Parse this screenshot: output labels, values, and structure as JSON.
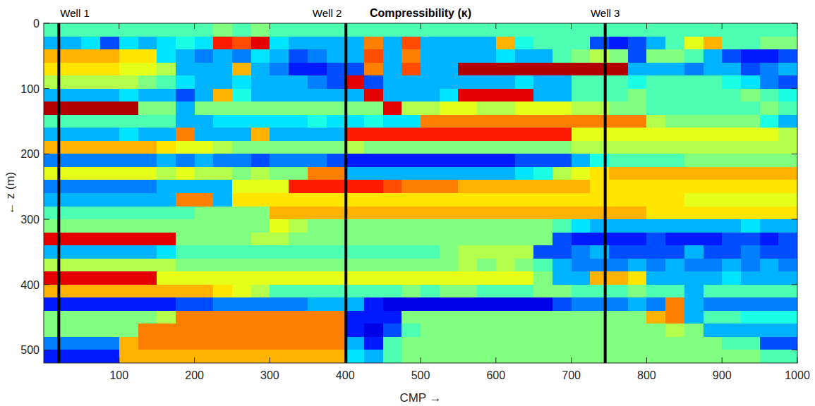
{
  "chart_data": {
    "type": "heatmap",
    "title": "Compressibility (κ)",
    "x_label": "CMP →",
    "y_label": "← z (m)",
    "xlim": [
      0,
      1000
    ],
    "ylim": [
      0,
      520
    ],
    "xticks": [
      100,
      200,
      300,
      400,
      500,
      600,
      700,
      800,
      900,
      1000
    ],
    "yticks": [
      0,
      100,
      200,
      300,
      400,
      500
    ],
    "color": "jet",
    "color_range": [
      0,
      1
    ],
    "wells": [
      {
        "label": "Well 1",
        "x": 20
      },
      {
        "label": "Well 2",
        "x": 401
      },
      {
        "label": "Well 3",
        "x": 745
      }
    ],
    "x_bins": [
      0,
      25,
      50,
      75,
      100,
      125,
      150,
      175,
      200,
      225,
      250,
      275,
      300,
      325,
      350,
      375,
      400,
      425,
      450,
      475,
      500,
      525,
      550,
      575,
      600,
      625,
      650,
      675,
      700,
      725,
      750,
      775,
      800,
      825,
      850,
      875,
      900,
      925,
      950,
      975,
      1000
    ],
    "y_bins": [
      0,
      20,
      40,
      60,
      80,
      100,
      120,
      140,
      160,
      180,
      200,
      220,
      240,
      260,
      280,
      300,
      320,
      340,
      360,
      380,
      400,
      420,
      440,
      460,
      480,
      500,
      520
    ],
    "cells": [
      [
        0.45,
        0.45,
        0.45,
        0.45,
        0.45,
        0.45,
        0.45,
        0.45,
        0.45,
        0.5,
        0.45,
        0.5,
        0.45,
        0.45,
        0.45,
        0.45,
        0.45,
        0.45,
        0.45,
        0.45,
        0.45,
        0.45,
        0.45,
        0.45,
        0.45,
        0.45,
        0.45,
        0.45,
        0.45,
        0.45,
        0.45,
        0.45,
        0.45,
        0.45,
        0.45,
        0.45,
        0.45,
        0.45,
        0.45,
        0.45
      ],
      [
        0.3,
        0.3,
        0.35,
        0.2,
        0.35,
        0.3,
        0.35,
        0.4,
        0.35,
        0.85,
        0.8,
        0.9,
        0.35,
        0.3,
        0.3,
        0.3,
        0.3,
        0.75,
        0.3,
        0.8,
        0.3,
        0.3,
        0.3,
        0.3,
        0.7,
        0.4,
        0.45,
        0.45,
        0.45,
        0.2,
        0.15,
        0.2,
        0.3,
        0.45,
        0.6,
        0.7,
        0.45,
        0.45,
        0.5,
        0.5
      ],
      [
        0.7,
        0.7,
        0.7,
        0.7,
        0.65,
        0.65,
        0.35,
        0.3,
        0.25,
        0.3,
        0.25,
        0.35,
        0.3,
        0.2,
        0.25,
        0.3,
        0.3,
        0.8,
        0.3,
        0.75,
        0.3,
        0.3,
        0.3,
        0.3,
        0.35,
        0.3,
        0.3,
        0.45,
        0.5,
        0.55,
        0.5,
        0.2,
        0.5,
        0.5,
        0.45,
        0.3,
        0.2,
        0.15,
        0.15,
        0.2
      ],
      [
        0.65,
        0.65,
        0.65,
        0.65,
        0.6,
        0.6,
        0.55,
        0.3,
        0.3,
        0.3,
        0.7,
        0.3,
        0.25,
        0.15,
        0.15,
        0.2,
        0.2,
        0.75,
        0.3,
        0.8,
        0.3,
        0.3,
        0.95,
        0.95,
        0.95,
        0.95,
        0.95,
        0.95,
        0.95,
        0.95,
        0.95,
        0.3,
        0.3,
        0.3,
        0.25,
        0.3,
        0.3,
        0.2,
        0.25,
        0.3
      ],
      [
        0.55,
        0.55,
        0.55,
        0.55,
        0.55,
        0.5,
        0.45,
        0.35,
        0.3,
        0.3,
        0.35,
        0.3,
        0.3,
        0.3,
        0.25,
        0.2,
        0.9,
        0.2,
        0.3,
        0.3,
        0.3,
        0.3,
        0.3,
        0.3,
        0.3,
        0.35,
        0.3,
        0.3,
        0.45,
        0.45,
        0.45,
        0.4,
        0.45,
        0.45,
        0.45,
        0.45,
        0.4,
        0.35,
        0.25,
        0.2
      ],
      [
        0.3,
        0.3,
        0.3,
        0.3,
        0.35,
        0.3,
        0.3,
        0.2,
        0.3,
        0.7,
        0.4,
        0.3,
        0.3,
        0.3,
        0.3,
        0.3,
        0.3,
        0.9,
        0.3,
        0.3,
        0.3,
        0.35,
        0.9,
        0.9,
        0.9,
        0.9,
        0.3,
        0.3,
        0.45,
        0.45,
        0.45,
        0.5,
        0.45,
        0.45,
        0.45,
        0.45,
        0.45,
        0.5,
        0.45,
        0.4
      ],
      [
        0.95,
        0.95,
        0.95,
        0.95,
        0.95,
        0.5,
        0.5,
        0.3,
        0.5,
        0.5,
        0.5,
        0.5,
        0.5,
        0.5,
        0.5,
        0.5,
        0.5,
        0.5,
        0.9,
        0.55,
        0.55,
        0.6,
        0.6,
        0.55,
        0.55,
        0.6,
        0.6,
        0.6,
        0.55,
        0.55,
        0.5,
        0.5,
        0.45,
        0.45,
        0.45,
        0.45,
        0.45,
        0.45,
        0.5,
        0.45
      ],
      [
        0.45,
        0.45,
        0.45,
        0.45,
        0.45,
        0.45,
        0.45,
        0.3,
        0.3,
        0.35,
        0.35,
        0.35,
        0.35,
        0.35,
        0.4,
        0.35,
        0.35,
        0.4,
        0.35,
        0.35,
        0.75,
        0.75,
        0.75,
        0.75,
        0.75,
        0.75,
        0.75,
        0.75,
        0.75,
        0.75,
        0.75,
        0.75,
        0.55,
        0.5,
        0.5,
        0.5,
        0.5,
        0.5,
        0.4,
        0.3
      ],
      [
        0.3,
        0.3,
        0.3,
        0.3,
        0.35,
        0.3,
        0.3,
        0.75,
        0.3,
        0.3,
        0.3,
        0.7,
        0.3,
        0.3,
        0.3,
        0.3,
        0.85,
        0.85,
        0.85,
        0.85,
        0.85,
        0.85,
        0.85,
        0.85,
        0.85,
        0.85,
        0.85,
        0.85,
        0.6,
        0.6,
        0.6,
        0.6,
        0.6,
        0.6,
        0.6,
        0.6,
        0.6,
        0.6,
        0.6,
        0.55
      ],
      [
        0.7,
        0.7,
        0.7,
        0.7,
        0.7,
        0.7,
        0.65,
        0.6,
        0.6,
        0.55,
        0.5,
        0.5,
        0.5,
        0.5,
        0.5,
        0.5,
        0.55,
        0.5,
        0.5,
        0.5,
        0.5,
        0.5,
        0.5,
        0.5,
        0.5,
        0.5,
        0.5,
        0.5,
        0.55,
        0.55,
        0.55,
        0.55,
        0.55,
        0.55,
        0.55,
        0.55,
        0.55,
        0.55,
        0.55,
        0.55
      ],
      [
        0.25,
        0.25,
        0.25,
        0.25,
        0.25,
        0.25,
        0.3,
        0.25,
        0.3,
        0.25,
        0.25,
        0.2,
        0.25,
        0.25,
        0.25,
        0.2,
        0.15,
        0.15,
        0.15,
        0.15,
        0.15,
        0.15,
        0.15,
        0.15,
        0.15,
        0.2,
        0.2,
        0.2,
        0.3,
        0.4,
        0.45,
        0.45,
        0.45,
        0.45,
        0.5,
        0.5,
        0.5,
        0.5,
        0.5,
        0.5
      ],
      [
        0.6,
        0.6,
        0.6,
        0.6,
        0.6,
        0.6,
        0.55,
        0.6,
        0.55,
        0.55,
        0.5,
        0.55,
        0.5,
        0.5,
        0.75,
        0.75,
        0.3,
        0.3,
        0.3,
        0.3,
        0.3,
        0.3,
        0.3,
        0.3,
        0.3,
        0.35,
        0.4,
        0.55,
        0.6,
        0.65,
        0.7,
        0.7,
        0.7,
        0.7,
        0.7,
        0.7,
        0.7,
        0.7,
        0.7,
        0.7
      ],
      [
        0.25,
        0.25,
        0.25,
        0.25,
        0.25,
        0.25,
        0.3,
        0.3,
        0.3,
        0.3,
        0.6,
        0.6,
        0.6,
        0.85,
        0.85,
        0.85,
        0.85,
        0.85,
        0.8,
        0.75,
        0.75,
        0.75,
        0.7,
        0.7,
        0.7,
        0.7,
        0.7,
        0.7,
        0.7,
        0.65,
        0.65,
        0.65,
        0.65,
        0.65,
        0.65,
        0.65,
        0.65,
        0.65,
        0.65,
        0.65
      ],
      [
        0.3,
        0.3,
        0.3,
        0.3,
        0.3,
        0.3,
        0.3,
        0.75,
        0.75,
        0.3,
        0.65,
        0.65,
        0.65,
        0.65,
        0.65,
        0.65,
        0.65,
        0.65,
        0.65,
        0.65,
        0.65,
        0.65,
        0.65,
        0.65,
        0.65,
        0.65,
        0.65,
        0.65,
        0.65,
        0.65,
        0.65,
        0.65,
        0.65,
        0.65,
        0.6,
        0.6,
        0.6,
        0.6,
        0.6,
        0.6
      ],
      [
        0.45,
        0.45,
        0.45,
        0.45,
        0.45,
        0.45,
        0.45,
        0.45,
        0.5,
        0.5,
        0.5,
        0.5,
        0.7,
        0.7,
        0.7,
        0.7,
        0.7,
        0.7,
        0.7,
        0.7,
        0.7,
        0.7,
        0.7,
        0.7,
        0.7,
        0.7,
        0.7,
        0.7,
        0.7,
        0.7,
        0.7,
        0.7,
        0.65,
        0.65,
        0.65,
        0.65,
        0.65,
        0.65,
        0.65,
        0.65
      ],
      [
        0.5,
        0.5,
        0.5,
        0.5,
        0.5,
        0.5,
        0.5,
        0.5,
        0.5,
        0.5,
        0.5,
        0.5,
        0.6,
        0.55,
        0.5,
        0.5,
        0.5,
        0.5,
        0.5,
        0.5,
        0.5,
        0.5,
        0.5,
        0.5,
        0.5,
        0.5,
        0.5,
        0.45,
        0.35,
        0.3,
        0.3,
        0.3,
        0.3,
        0.3,
        0.3,
        0.3,
        0.3,
        0.35,
        0.3,
        0.3
      ],
      [
        0.9,
        0.9,
        0.9,
        0.9,
        0.9,
        0.9,
        0.9,
        0.5,
        0.5,
        0.5,
        0.5,
        0.55,
        0.55,
        0.5,
        0.5,
        0.5,
        0.5,
        0.5,
        0.5,
        0.5,
        0.5,
        0.5,
        0.5,
        0.5,
        0.5,
        0.5,
        0.5,
        0.2,
        0.15,
        0.15,
        0.15,
        0.15,
        0.2,
        0.15,
        0.15,
        0.15,
        0.2,
        0.2,
        0.15,
        0.2
      ],
      [
        0.3,
        0.3,
        0.3,
        0.3,
        0.3,
        0.3,
        0.35,
        0.45,
        0.45,
        0.45,
        0.45,
        0.45,
        0.45,
        0.45,
        0.45,
        0.45,
        0.45,
        0.45,
        0.45,
        0.45,
        0.45,
        0.5,
        0.55,
        0.55,
        0.55,
        0.55,
        0.2,
        0.2,
        0.25,
        0.3,
        0.2,
        0.2,
        0.2,
        0.2,
        0.3,
        0.2,
        0.2,
        0.25,
        0.2,
        0.2
      ],
      [
        0.55,
        0.55,
        0.55,
        0.55,
        0.55,
        0.55,
        0.55,
        0.5,
        0.5,
        0.5,
        0.5,
        0.5,
        0.5,
        0.5,
        0.5,
        0.5,
        0.5,
        0.5,
        0.5,
        0.5,
        0.5,
        0.5,
        0.55,
        0.5,
        0.55,
        0.5,
        0.45,
        0.3,
        0.25,
        0.25,
        0.25,
        0.3,
        0.25,
        0.3,
        0.25,
        0.25,
        0.3,
        0.25,
        0.3,
        0.25
      ],
      [
        0.9,
        0.9,
        0.9,
        0.9,
        0.9,
        0.9,
        0.6,
        0.6,
        0.6,
        0.6,
        0.6,
        0.6,
        0.6,
        0.6,
        0.6,
        0.6,
        0.6,
        0.6,
        0.6,
        0.6,
        0.6,
        0.6,
        0.6,
        0.6,
        0.6,
        0.6,
        0.5,
        0.3,
        0.3,
        0.7,
        0.7,
        0.65,
        0.3,
        0.3,
        0.3,
        0.3,
        0.35,
        0.3,
        0.3,
        0.3
      ],
      [
        0.7,
        0.7,
        0.7,
        0.7,
        0.7,
        0.7,
        0.7,
        0.7,
        0.7,
        0.65,
        0.6,
        0.55,
        0.45,
        0.45,
        0.45,
        0.45,
        0.45,
        0.45,
        0.45,
        0.5,
        0.45,
        0.5,
        0.5,
        0.45,
        0.45,
        0.45,
        0.5,
        0.5,
        0.45,
        0.45,
        0.45,
        0.5,
        0.45,
        0.45,
        0.3,
        0.45,
        0.45,
        0.45,
        0.45,
        0.45
      ],
      [
        0.15,
        0.15,
        0.15,
        0.15,
        0.15,
        0.15,
        0.15,
        0.2,
        0.2,
        0.25,
        0.25,
        0.25,
        0.25,
        0.25,
        0.3,
        0.3,
        0.3,
        0.15,
        0.1,
        0.1,
        0.1,
        0.1,
        0.1,
        0.1,
        0.1,
        0.1,
        0.1,
        0.2,
        0.25,
        0.25,
        0.25,
        0.3,
        0.25,
        0.75,
        0.3,
        0.25,
        0.25,
        0.25,
        0.25,
        0.25
      ],
      [
        0.5,
        0.5,
        0.5,
        0.5,
        0.5,
        0.5,
        0.55,
        0.75,
        0.75,
        0.75,
        0.75,
        0.75,
        0.75,
        0.75,
        0.75,
        0.75,
        0.15,
        0.15,
        0.15,
        0.5,
        0.5,
        0.5,
        0.5,
        0.5,
        0.5,
        0.5,
        0.5,
        0.5,
        0.5,
        0.5,
        0.5,
        0.5,
        0.7,
        0.75,
        0.3,
        0.45,
        0.45,
        0.4,
        0.4,
        0.4
      ],
      [
        0.5,
        0.5,
        0.5,
        0.5,
        0.5,
        0.75,
        0.75,
        0.75,
        0.75,
        0.75,
        0.75,
        0.75,
        0.75,
        0.75,
        0.75,
        0.75,
        0.15,
        0.1,
        0.2,
        0.45,
        0.5,
        0.5,
        0.5,
        0.5,
        0.5,
        0.5,
        0.5,
        0.5,
        0.5,
        0.5,
        0.5,
        0.5,
        0.5,
        0.55,
        0.5,
        0.3,
        0.3,
        0.3,
        0.3,
        0.3
      ],
      [
        0.25,
        0.25,
        0.25,
        0.25,
        0.7,
        0.75,
        0.75,
        0.75,
        0.75,
        0.75,
        0.75,
        0.75,
        0.75,
        0.75,
        0.75,
        0.75,
        0.3,
        0.15,
        0.45,
        0.5,
        0.5,
        0.5,
        0.5,
        0.5,
        0.5,
        0.5,
        0.5,
        0.5,
        0.5,
        0.5,
        0.5,
        0.5,
        0.5,
        0.5,
        0.5,
        0.5,
        0.45,
        0.45,
        0.2,
        0.2
      ],
      [
        0.15,
        0.15,
        0.15,
        0.15,
        0.7,
        0.7,
        0.7,
        0.7,
        0.7,
        0.7,
        0.7,
        0.7,
        0.7,
        0.7,
        0.7,
        0.7,
        0.35,
        0.3,
        0.45,
        0.5,
        0.5,
        0.5,
        0.5,
        0.5,
        0.5,
        0.5,
        0.5,
        0.5,
        0.5,
        0.5,
        0.5,
        0.5,
        0.5,
        0.5,
        0.5,
        0.5,
        0.5,
        0.5,
        0.45,
        0.45
      ]
    ]
  }
}
